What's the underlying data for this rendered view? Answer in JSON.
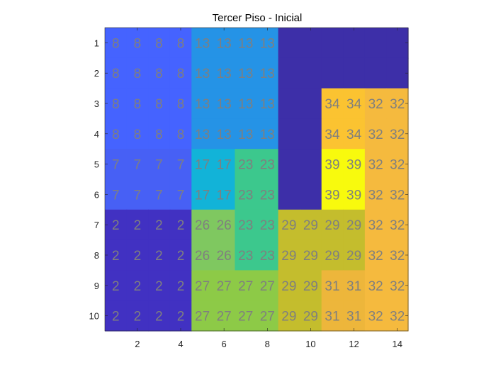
{
  "chart_data": {
    "type": "heatmap",
    "title": "Tercer Piso - Inicial",
    "xlabel": "",
    "ylabel": "",
    "xlim": [
      0.5,
      14.5
    ],
    "ylim": [
      0.5,
      10.5
    ],
    "y_reversed": true,
    "x_ticks": [
      2,
      4,
      6,
      8,
      10,
      12,
      14
    ],
    "y_ticks": [
      1,
      2,
      3,
      4,
      5,
      6,
      7,
      8,
      9,
      10
    ],
    "grid": false,
    "colormap": "parula",
    "color_range": [
      0,
      39
    ],
    "values": [
      [
        8,
        8,
        8,
        8,
        13,
        13,
        13,
        13,
        0,
        0,
        0,
        0,
        0,
        0
      ],
      [
        8,
        8,
        8,
        8,
        13,
        13,
        13,
        13,
        0,
        0,
        0,
        0,
        0,
        0
      ],
      [
        8,
        8,
        8,
        8,
        13,
        13,
        13,
        13,
        0,
        0,
        34,
        34,
        32,
        32
      ],
      [
        8,
        8,
        8,
        8,
        13,
        13,
        13,
        13,
        0,
        0,
        34,
        34,
        32,
        32
      ],
      [
        7,
        7,
        7,
        7,
        17,
        17,
        23,
        23,
        0,
        0,
        39,
        39,
        32,
        32
      ],
      [
        7,
        7,
        7,
        7,
        17,
        17,
        23,
        23,
        0,
        0,
        39,
        39,
        32,
        32
      ],
      [
        2,
        2,
        2,
        2,
        26,
        26,
        23,
        23,
        29,
        29,
        29,
        29,
        32,
        32
      ],
      [
        2,
        2,
        2,
        2,
        26,
        26,
        23,
        23,
        29,
        29,
        29,
        29,
        32,
        32
      ],
      [
        2,
        2,
        2,
        2,
        27,
        27,
        27,
        27,
        29,
        29,
        31,
        31,
        32,
        32
      ],
      [
        2,
        2,
        2,
        2,
        27,
        27,
        27,
        27,
        29,
        29,
        31,
        31,
        32,
        32
      ]
    ],
    "cell_labels_shown_for_zero": false,
    "label_color": "#7f7f7f",
    "colors": {
      "0": "#3d2fa8",
      "2": "#4131c2",
      "7": "#4760f5",
      "8": "#4563ff",
      "13": "#2593e6",
      "17": "#12b3d8",
      "23": "#3cc88d",
      "26": "#7fc860",
      "27": "#8dca47",
      "29": "#c4bd2d",
      "31": "#edb63b",
      "32": "#f5ba3e",
      "34": "#fbc331",
      "39": "#f8fa0d"
    }
  }
}
